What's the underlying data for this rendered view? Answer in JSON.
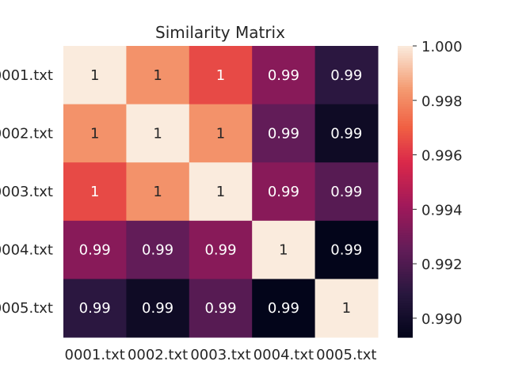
{
  "chart_data": {
    "type": "heatmap",
    "title": "Similarity Matrix",
    "xlabel": "",
    "ylabel": "",
    "x_categories": [
      "0001.txt",
      "0002.txt",
      "0003.txt",
      "0004.txt",
      "0005.txt"
    ],
    "y_categories": [
      "0001.txt",
      "0002.txt",
      "0003.txt",
      "0004.txt",
      "0005.txt"
    ],
    "values": [
      [
        1.0,
        0.9982,
        0.9965,
        0.9935,
        0.991
      ],
      [
        0.9982,
        1.0,
        0.9982,
        0.9925,
        0.9898
      ],
      [
        0.9965,
        0.9982,
        1.0,
        0.9935,
        0.9922
      ],
      [
        0.9935,
        0.9925,
        0.9935,
        1.0,
        0.9893
      ],
      [
        0.991,
        0.9898,
        0.9922,
        0.9893,
        1.0
      ]
    ],
    "annotations": [
      [
        "1",
        "1",
        "1",
        "0.99",
        "0.99"
      ],
      [
        "1",
        "1",
        "1",
        "0.99",
        "0.99"
      ],
      [
        "1",
        "1",
        "1",
        "0.99",
        "0.99"
      ],
      [
        "0.99",
        "0.99",
        "0.99",
        "1",
        "0.99"
      ],
      [
        "0.99",
        "0.99",
        "0.99",
        "0.99",
        "1"
      ]
    ],
    "colorbar": {
      "min": 0.9893,
      "max": 1.0,
      "ticks": [
        0.99,
        0.992,
        0.994,
        0.996,
        0.998,
        1.0
      ],
      "tick_labels": [
        "0.990",
        "0.992",
        "0.994",
        "0.996",
        "0.998",
        "1.000"
      ],
      "colormap": "rocket"
    },
    "grid": false,
    "legend": "colorbar-right"
  }
}
